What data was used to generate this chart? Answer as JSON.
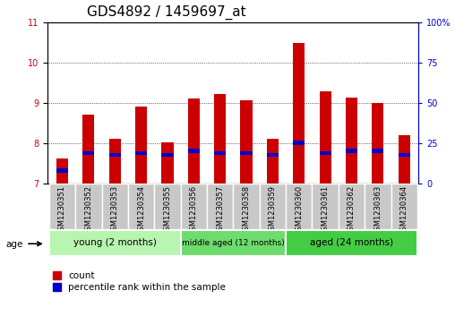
{
  "title": "GDS4892 / 1459697_at",
  "samples": [
    "GSM1230351",
    "GSM1230352",
    "GSM1230353",
    "GSM1230354",
    "GSM1230355",
    "GSM1230356",
    "GSM1230357",
    "GSM1230358",
    "GSM1230359",
    "GSM1230360",
    "GSM1230361",
    "GSM1230362",
    "GSM1230363",
    "GSM1230364"
  ],
  "count_values": [
    7.62,
    8.72,
    8.12,
    8.92,
    8.02,
    9.12,
    9.22,
    9.08,
    8.12,
    10.5,
    9.3,
    9.15,
    9.0,
    8.2
  ],
  "percentile_values": [
    7.32,
    7.76,
    7.72,
    7.76,
    7.72,
    7.82,
    7.76,
    7.76,
    7.72,
    8.02,
    7.76,
    7.82,
    7.82,
    7.72
  ],
  "ymin": 7,
  "ymax": 11,
  "yticks_left": [
    7,
    8,
    9,
    10,
    11
  ],
  "yticks_right_labels": [
    "0",
    "25",
    "50",
    "75",
    "100%"
  ],
  "yticks_right_pct": [
    0,
    25,
    50,
    75,
    100
  ],
  "groups": [
    {
      "label": "young (2 months)",
      "start": 0,
      "end": 5
    },
    {
      "label": "middle aged (12 months)",
      "start": 5,
      "end": 9
    },
    {
      "label": "aged (24 months)",
      "start": 9,
      "end": 14
    }
  ],
  "group_colors": [
    "#b8f5b0",
    "#6ddc6d",
    "#44cc44"
  ],
  "bar_width": 0.45,
  "count_color": "#CC0000",
  "percentile_color": "#0000CC",
  "title_fontsize": 11,
  "tick_fontsize": 7,
  "legend_count_label": "count",
  "legend_pct_label": "percentile rank within the sample"
}
